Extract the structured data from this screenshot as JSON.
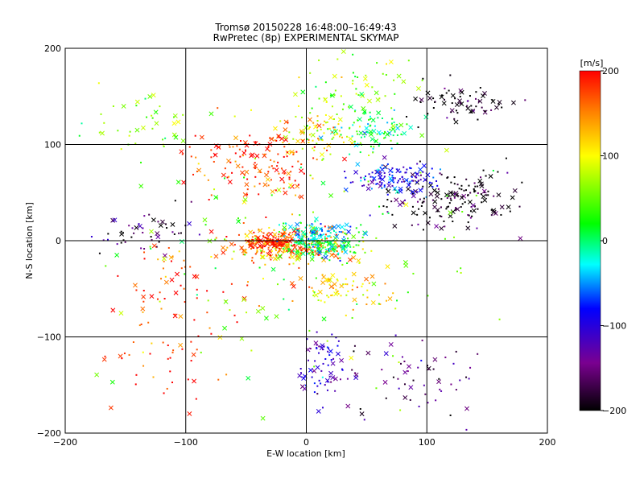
{
  "chart_data": {
    "type": "scatter",
    "title": "Tromsø 20150228 16:48:00–16:49:43",
    "subtitle": "RwPretec (8p) EXPERIMENTAL SKYMAP",
    "xlabel": "E-W location [km]",
    "ylabel": "N-S location [km]",
    "xlim": [
      -200,
      200
    ],
    "ylim": [
      -200,
      200
    ],
    "xticks": [
      "−200",
      "−100",
      "0",
      "100",
      "200"
    ],
    "yticks": [
      "−200",
      "−100",
      "0",
      "100",
      "200"
    ],
    "grid": true,
    "colorbar": {
      "unit": "[m/s]",
      "range": [
        -200,
        200
      ],
      "ticks": [
        "200",
        "100",
        "0",
        "−100",
        "−200"
      ],
      "colormap": "rainbow (black at −200, red at +200)"
    },
    "marker_types": [
      "cross",
      "dot"
    ],
    "clusters": [
      {
        "cx": -15,
        "cy": -5,
        "sx": 35,
        "sy": 12,
        "vel": 150,
        "n": 260
      },
      {
        "cx": 15,
        "cy": -5,
        "sx": 20,
        "sy": 10,
        "vel": 0,
        "n": 160
      },
      {
        "cx": -30,
        "cy": 0,
        "sx": 15,
        "sy": 6,
        "vel": 200,
        "n": 90
      },
      {
        "cx": 10,
        "cy": 10,
        "sx": 25,
        "sy": 8,
        "vel": -30,
        "n": 80
      },
      {
        "cx": 120,
        "cy": 45,
        "sx": 35,
        "sy": 20,
        "vel": -200,
        "n": 170
      },
      {
        "cx": 75,
        "cy": 65,
        "sx": 25,
        "sy": 12,
        "vel": -90,
        "n": 120
      },
      {
        "cx": 130,
        "cy": 145,
        "sx": 30,
        "sy": 15,
        "vel": -200,
        "n": 70
      },
      {
        "cx": 55,
        "cy": 115,
        "sx": 20,
        "sy": 15,
        "vel": 10,
        "n": 90
      },
      {
        "cx": 10,
        "cy": 110,
        "sx": 25,
        "sy": 15,
        "vel": 110,
        "n": 80
      },
      {
        "cx": -40,
        "cy": 80,
        "sx": 40,
        "sy": 30,
        "vel": 180,
        "n": 150
      },
      {
        "cx": 15,
        "cy": -130,
        "sx": 15,
        "sy": 25,
        "vel": -110,
        "n": 70
      },
      {
        "cx": 30,
        "cy": -50,
        "sx": 25,
        "sy": 15,
        "vel": 120,
        "n": 70
      },
      {
        "cx": -140,
        "cy": 120,
        "sx": 30,
        "sy": 25,
        "vel": 60,
        "n": 40
      },
      {
        "cx": -130,
        "cy": 10,
        "sx": 30,
        "sy": 15,
        "vel": -180,
        "n": 50
      },
      {
        "cx": -120,
        "cy": -120,
        "sx": 30,
        "sy": 40,
        "vel": 190,
        "n": 40
      },
      {
        "cx": 90,
        "cy": -140,
        "sx": 50,
        "sy": 30,
        "vel": -150,
        "n": 60
      },
      {
        "cx": 40,
        "cy": 160,
        "sx": 40,
        "sy": 25,
        "vel": 60,
        "n": 60
      },
      {
        "cx": -100,
        "cy": -40,
        "sx": 40,
        "sy": 40,
        "vel": 180,
        "n": 60
      },
      {
        "cx": 0,
        "cy": 0,
        "sx": 110,
        "sy": 110,
        "vel": 50,
        "n": 150
      }
    ]
  }
}
